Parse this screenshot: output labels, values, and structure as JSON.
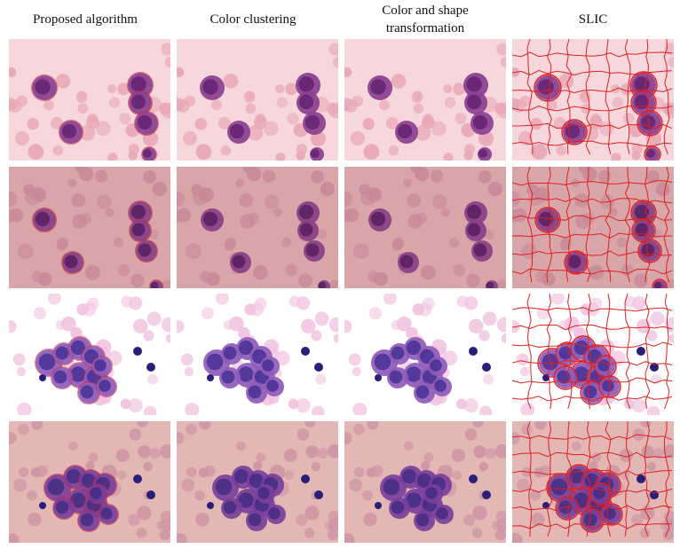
{
  "figure": {
    "columns": [
      {
        "id": "proposed",
        "label": "Proposed algorithm",
        "overlay": false
      },
      {
        "id": "color-clustering",
        "label": "Color clustering",
        "overlay": false
      },
      {
        "id": "color-shape",
        "label": "Color and shape\ntransformation",
        "overlay": false
      },
      {
        "id": "slic",
        "label": "SLIC",
        "overlay": true
      }
    ],
    "rows": [
      {
        "id": "sample-1",
        "background": "#f6d8dc",
        "rbc_color": "#e8a7b5",
        "cell_color": "#8a3f8f",
        "nucleus_color": "#5b1e6c",
        "boundary_color": "#e02020"
      },
      {
        "id": "sample-2",
        "background": "#d8a5a9",
        "rbc_color": "#c98a98",
        "cell_color": "#8a3f86",
        "nucleus_color": "#4d1a5c",
        "boundary_color": "#e02020"
      },
      {
        "id": "sample-3",
        "background": "#ffffff",
        "rbc_color": "#f1c3e0",
        "cell_color": "#8f5bb8",
        "nucleus_color": "#3b2a8f",
        "boundary_color": "#e02020"
      },
      {
        "id": "sample-4",
        "background": "#e2b7b4",
        "rbc_color": "#cf95a4",
        "cell_color": "#7a3f9a",
        "nucleus_color": "#3b2a7f",
        "boundary_color": "#e02020"
      }
    ]
  }
}
